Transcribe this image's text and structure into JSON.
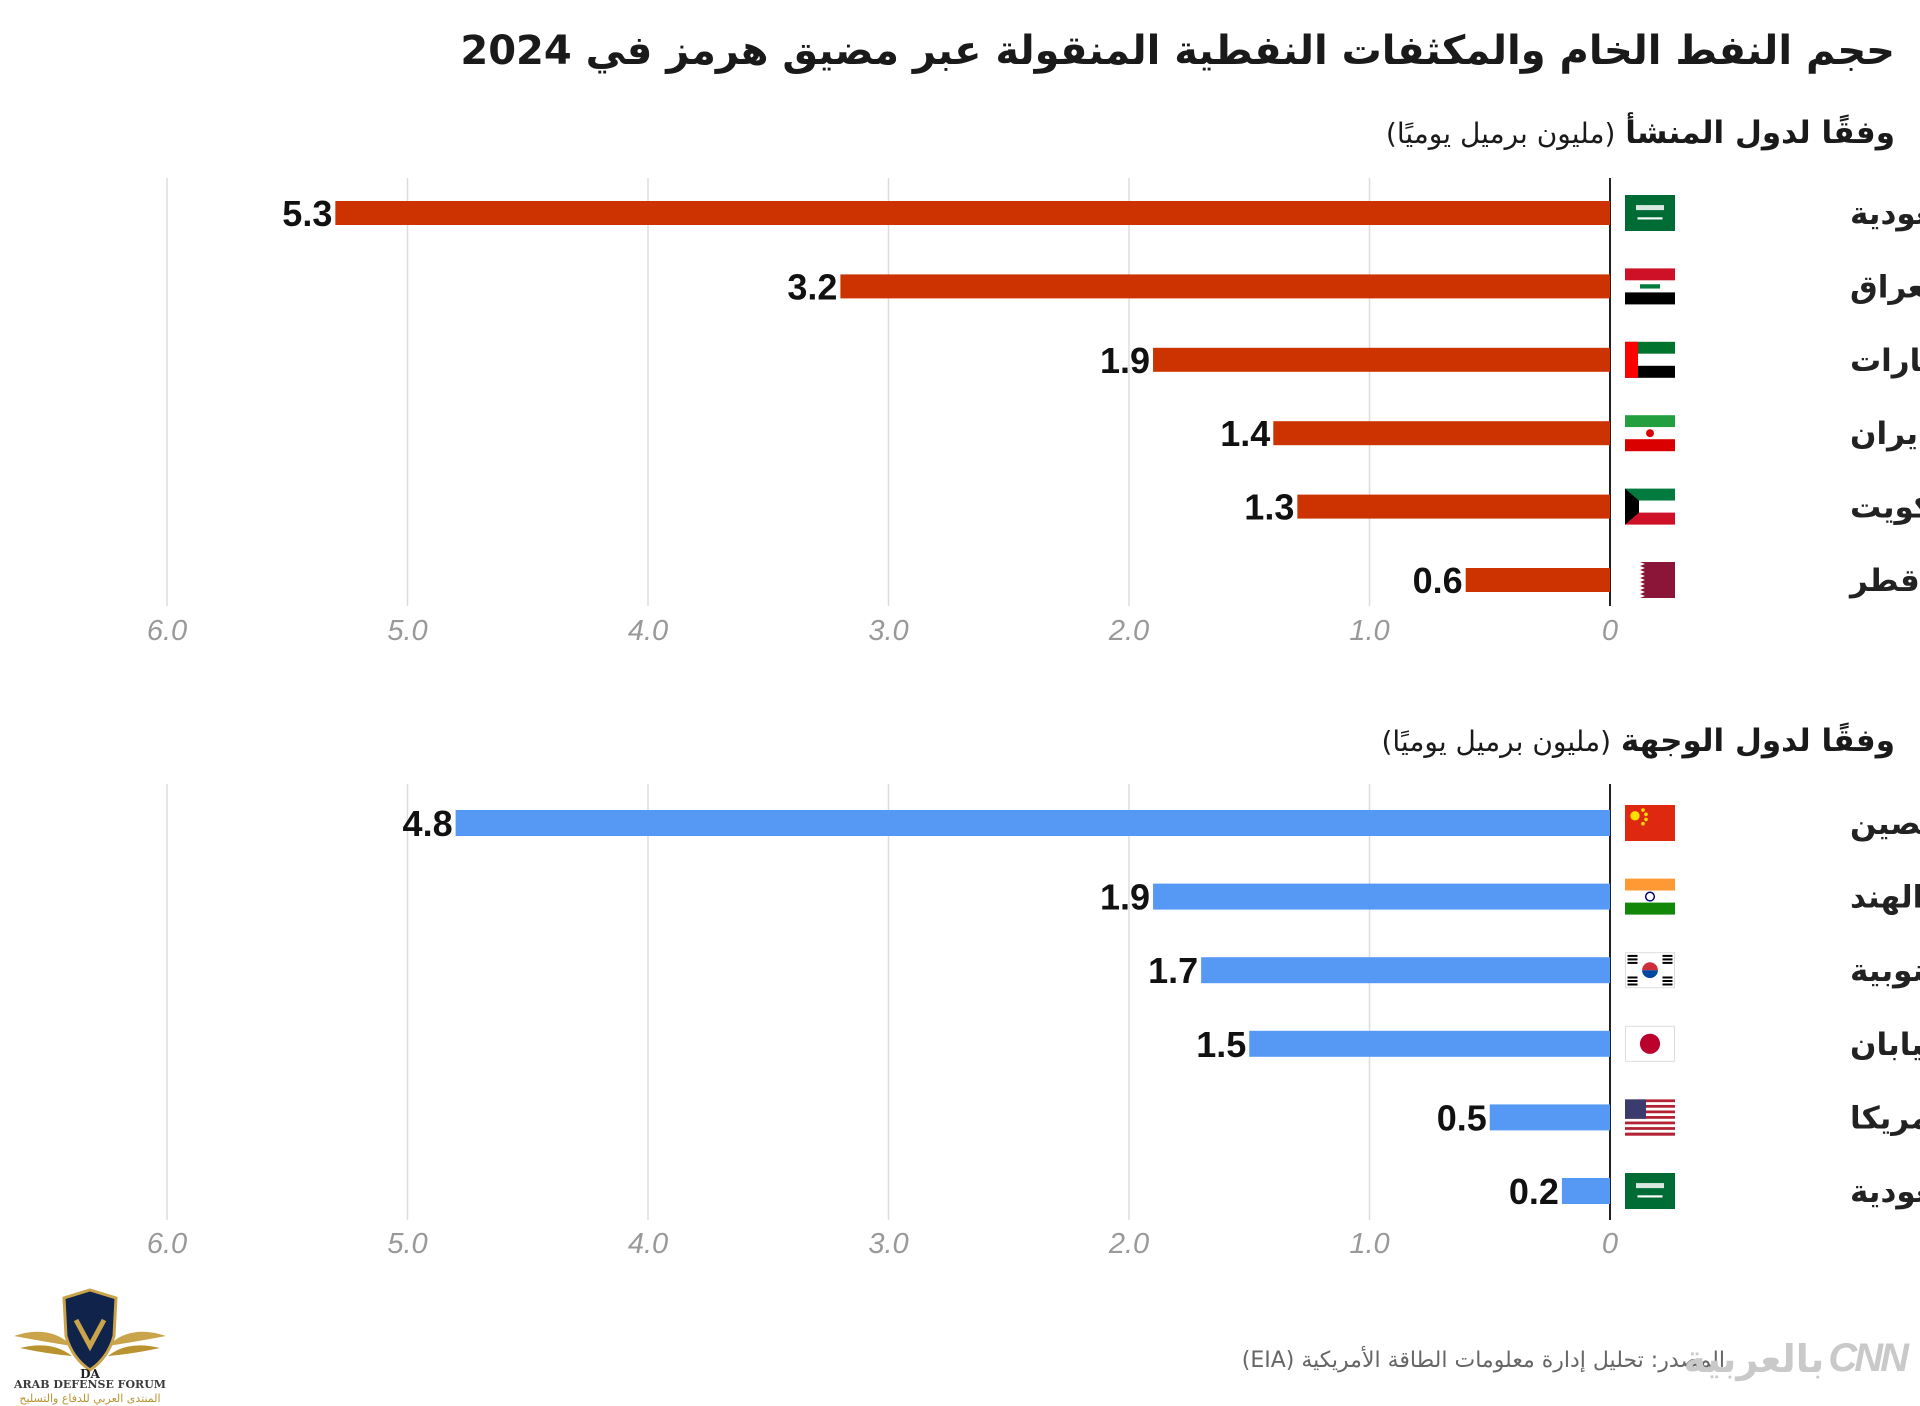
{
  "title": "حجم النفط الخام والمكثفات النفطية المنقولة عبر مضيق هرمز في 2024",
  "colors": {
    "origin_bar": "#cc3300",
    "destination_bar": "#5599f5",
    "grid": "#dddddd",
    "axis": "#222222",
    "tick": "#999999"
  },
  "sections": [
    {
      "heading": "وفقًا لدول المنشأ",
      "unit": "(مليون برميل يوميًا)"
    },
    {
      "heading": "وفقًا لدول الوجهة",
      "unit": "(مليون برميل يوميًا)"
    }
  ],
  "chart_data": [
    {
      "type": "bar",
      "orientation": "horizontal",
      "categories": [
        "السعودية",
        "العراق",
        "الإمارات",
        "إيران",
        "الكويت",
        "قطر"
      ],
      "flags": [
        "saudi-flag-icon",
        "iraq-flag-icon",
        "uae-flag-icon",
        "iran-flag-icon",
        "kuwait-flag-icon",
        "qatar-flag-icon"
      ],
      "values": [
        5.3,
        3.2,
        1.9,
        1.4,
        1.3,
        0.6
      ],
      "data_labels": [
        "5.3",
        "3.2",
        "1.9",
        "1.4",
        "1.3",
        "0.6"
      ],
      "xlim": [
        0,
        6.0
      ],
      "x_ticks": [
        "0",
        "1.0",
        "2.0",
        "3.0",
        "4.0",
        "5.0",
        "6.0"
      ],
      "x_tick_values": [
        0,
        1,
        2,
        3,
        4,
        5,
        6
      ],
      "grid": true,
      "color": "#cc3300"
    },
    {
      "type": "bar",
      "orientation": "horizontal",
      "categories": [
        "الصين",
        "الهند",
        "كوريا الجنوبية",
        "اليابان",
        "أمريكا",
        "السعودية"
      ],
      "flags": [
        "china-flag-icon",
        "india-flag-icon",
        "south-korea-flag-icon",
        "japan-flag-icon",
        "usa-flag-icon",
        "saudi-flag-icon"
      ],
      "values": [
        4.8,
        1.9,
        1.7,
        1.5,
        0.5,
        0.2
      ],
      "data_labels": [
        "4.8",
        "1.9",
        "1.7",
        "1.5",
        "0.5",
        "0.2"
      ],
      "xlim": [
        0,
        6.0
      ],
      "x_ticks": [
        "0",
        "1.0",
        "2.0",
        "3.0",
        "4.0",
        "5.0",
        "6.0"
      ],
      "x_tick_values": [
        0,
        1,
        2,
        3,
        4,
        5,
        6
      ],
      "grid": true,
      "color": "#5599f5"
    }
  ],
  "source": "المصدر: تحليل إدارة معلومات الطاقة الأمريكية (EIA)",
  "branding": {
    "logo_ar": "بالعربية",
    "logo_en": "CNN"
  },
  "watermark": {
    "monogram": "DA",
    "name_en": "ARAB DEFENSE FORUM",
    "name_ar": "المنتدى العربي للدفاع والتسليح"
  }
}
